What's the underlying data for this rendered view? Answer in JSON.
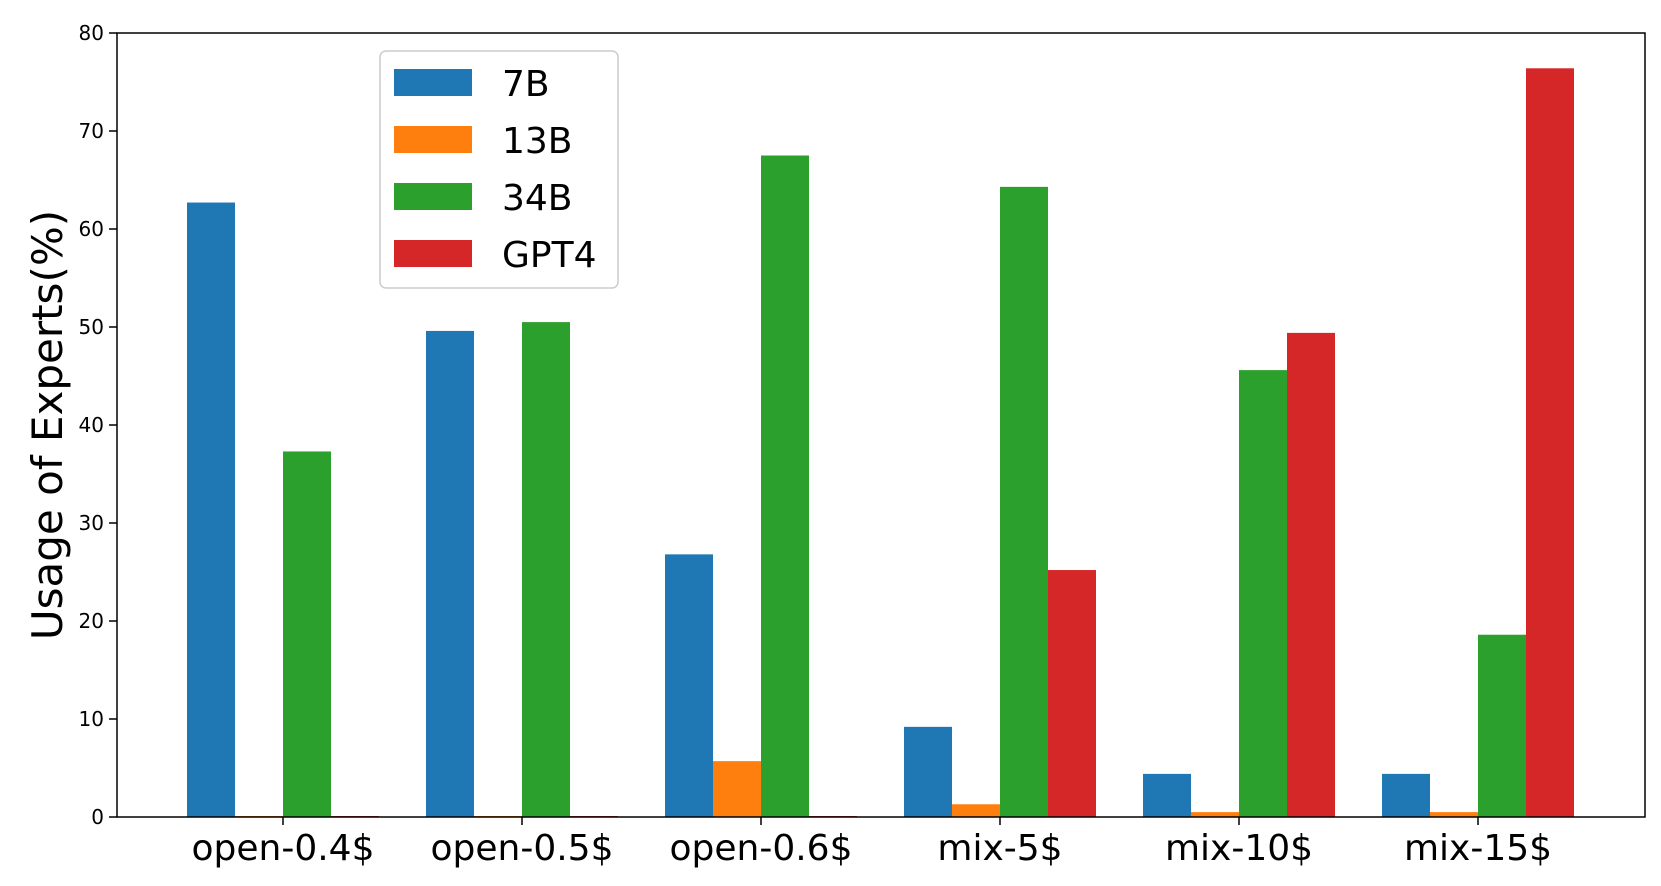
{
  "chart_data": {
    "type": "bar",
    "title": "",
    "xlabel": "",
    "ylabel": "Usage of Experts(%)",
    "ylim": [
      0,
      80
    ],
    "yticks": [
      0,
      10,
      20,
      30,
      40,
      50,
      60,
      70,
      80
    ],
    "categories": [
      "open-0.4$",
      "open-0.5$",
      "open-0.6$",
      "mix-5$",
      "mix-10$",
      "mix-15$"
    ],
    "series": [
      {
        "name": "7B",
        "color": "#1f77b4",
        "values": [
          62.7,
          49.6,
          26.8,
          9.2,
          4.4,
          4.4
        ]
      },
      {
        "name": "13B",
        "color": "#ff7f0e",
        "values": [
          0.1,
          0.1,
          5.7,
          1.3,
          0.5,
          0.5
        ]
      },
      {
        "name": "34B",
        "color": "#2ca02c",
        "values": [
          37.3,
          50.5,
          67.5,
          64.3,
          45.6,
          18.6
        ]
      },
      {
        "name": "GPT4",
        "color": "#d62728",
        "values": [
          0.1,
          0.1,
          0.1,
          25.2,
          49.4,
          76.4
        ]
      }
    ],
    "grid": false,
    "legend_position": "top-left"
  }
}
